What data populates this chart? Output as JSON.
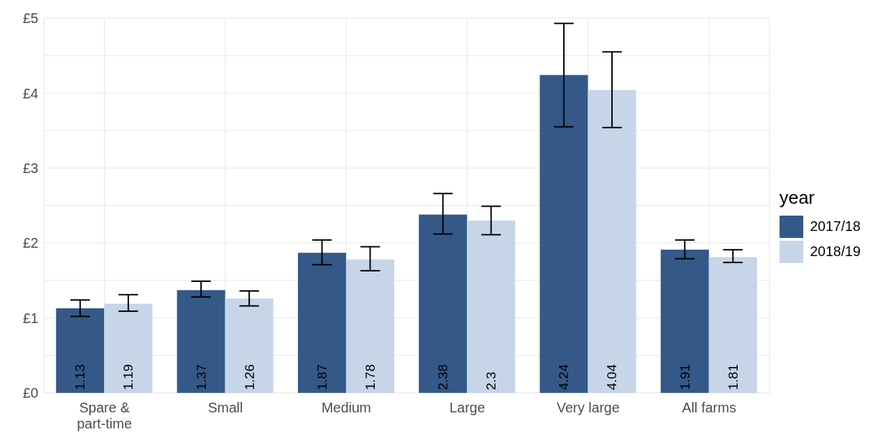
{
  "chart_data": {
    "type": "bar",
    "legend_title": "year",
    "categories": [
      "Spare & part-time",
      "Small",
      "Medium",
      "Large",
      "Very large",
      "All farms"
    ],
    "series": [
      {
        "name": "2017/18",
        "color": "#345888",
        "values": [
          1.13,
          1.37,
          1.87,
          2.38,
          4.24,
          1.91
        ],
        "errors": [
          [
            1.02,
            1.24
          ],
          [
            1.28,
            1.49
          ],
          [
            1.71,
            2.04
          ],
          [
            2.12,
            2.66
          ],
          [
            3.55,
            4.93
          ],
          [
            1.79,
            2.04
          ]
        ]
      },
      {
        "name": "2018/19",
        "color": "#c6d5e8",
        "values": [
          1.19,
          1.26,
          1.78,
          2.3,
          4.04,
          1.81
        ],
        "errors": [
          [
            1.09,
            1.31
          ],
          [
            1.16,
            1.36
          ],
          [
            1.63,
            1.95
          ],
          [
            2.11,
            2.49
          ],
          [
            3.54,
            4.55
          ],
          [
            1.74,
            1.91
          ]
        ]
      }
    ],
    "ylim": [
      0,
      5
    ],
    "yticks": [
      {
        "value": 0,
        "label": "£0"
      },
      {
        "value": 0.5,
        "label": null
      },
      {
        "value": 1,
        "label": "£1"
      },
      {
        "value": 1.5,
        "label": null
      },
      {
        "value": 2,
        "label": "£2"
      },
      {
        "value": 2.5,
        "label": null
      },
      {
        "value": 3,
        "label": "£3"
      },
      {
        "value": 3.5,
        "label": null
      },
      {
        "value": 4,
        "label": "£4"
      },
      {
        "value": 4.5,
        "label": null
      },
      {
        "value": 5,
        "label": "£5"
      }
    ],
    "grid": true,
    "legend": "right",
    "data_labels": true
  }
}
